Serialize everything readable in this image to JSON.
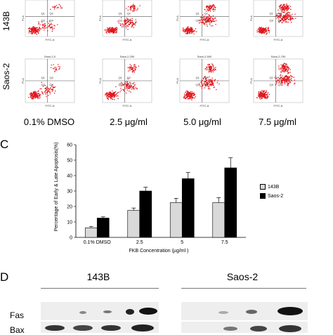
{
  "flow_panel": {
    "row_labels": [
      "143B",
      "Saos-2"
    ],
    "columns": [
      "0.1% DMSO",
      "2.5 μg/ml",
      "5.0 μg/ml",
      "7.5 μg/ml"
    ],
    "saos_titles": [
      "Saos-2-0",
      "Saos-2-250",
      "Saos-2-500",
      "Saos-2-750"
    ],
    "quadrant_labels": [
      "Q1",
      "Q2",
      "Q3",
      "Q4"
    ],
    "x_axis_label": "FITC-A",
    "y_axis_label": "PI-A",
    "dot_color": "#e0141b"
  },
  "panel_c": {
    "letter": "C",
    "chart_data": {
      "type": "bar",
      "categories": [
        "0.1% DMSO",
        "2.5",
        "5",
        "7.5"
      ],
      "series": [
        {
          "name": "143B",
          "color": "#d9d9d9",
          "values": [
            6.2,
            17.5,
            22.5,
            22.5
          ],
          "errors": [
            0.8,
            1.5,
            2.8,
            3.2
          ]
        },
        {
          "name": "Saos-2",
          "color": "#000000",
          "values": [
            12.5,
            30.0,
            38.0,
            45.0
          ],
          "errors": [
            0.8,
            2.5,
            4.0,
            6.5
          ]
        }
      ],
      "ylabel": "Percentage of Early & Late Apoptosis(%)",
      "xlabel": "FKB Concentration  (µg/ml )",
      "ylim": [
        0,
        60
      ],
      "yticks": [
        "0",
        "10",
        "20",
        "30",
        "40",
        "50",
        "60"
      ],
      "legend_placement": "right",
      "grid": false
    }
  },
  "panel_d": {
    "letter": "D",
    "groups": [
      "143B",
      "Saos-2"
    ],
    "proteins": [
      "Fas",
      "Bax"
    ]
  }
}
